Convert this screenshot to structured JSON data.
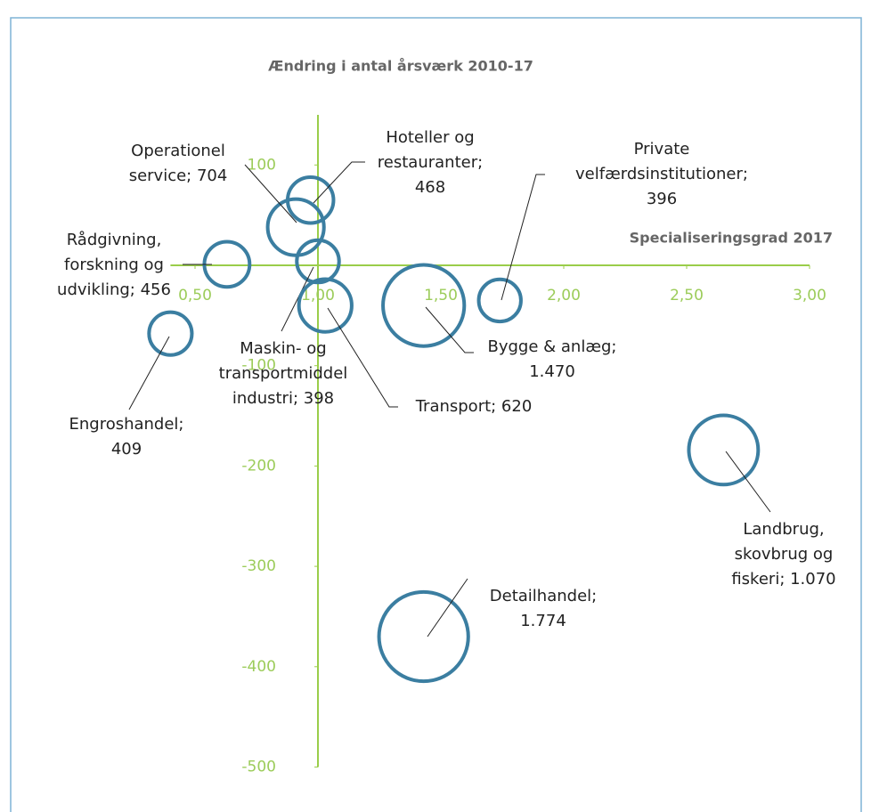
{
  "chart_data": {
    "type": "bubble",
    "y_axis_title": "Ændring i antal årsværk 2010-17",
    "x_axis_title": "Specialiseringsgrad 2017",
    "xlim": [
      0.4,
      3.0
    ],
    "xticks": [
      {
        "value": 0.5,
        "label": "0,50"
      },
      {
        "value": 1.0,
        "label": "1,00"
      },
      {
        "value": 1.5,
        "label": "1,50"
      },
      {
        "value": 2.0,
        "label": "2,00"
      },
      {
        "value": 2.5,
        "label": "2,50"
      },
      {
        "value": 3.0,
        "label": "3,00"
      }
    ],
    "ylim": [
      -500,
      150
    ],
    "yticks": [
      100,
      -100,
      -200,
      -300,
      -400,
      -500
    ],
    "color": "#3b7ea1",
    "axis_color": "#9acd4a",
    "points": [
      {
        "label_lines": [
          "Hoteller og",
          "restauranter;",
          "468"
        ],
        "x": 0.97,
        "y": 65,
        "size": 468
      },
      {
        "label_lines": [
          "Operationel",
          "service;  704"
        ],
        "x": 0.91,
        "y": 38,
        "size": 704
      },
      {
        "label_lines": [
          "Rådgivning,",
          "forskning og",
          "udvikling;  456"
        ],
        "x": 0.63,
        "y": 1,
        "size": 456
      },
      {
        "label_lines": [
          "Maskin- og",
          "transportmiddel",
          "industri;  398"
        ],
        "x": 1.0,
        "y": 4,
        "size": 398
      },
      {
        "label_lines": [
          "Transport;  620"
        ],
        "x": 1.03,
        "y": -40,
        "size": 620
      },
      {
        "label_lines": [
          "Engroshandel;",
          "409"
        ],
        "x": 0.4,
        "y": -68,
        "size": 409
      },
      {
        "label_lines": [
          "Bygge & anlæg;",
          "1.470"
        ],
        "x": 1.43,
        "y": -40,
        "size": 1470
      },
      {
        "label_lines": [
          "Private",
          "velfærdsinstitutioner;",
          "396"
        ],
        "x": 1.74,
        "y": -35,
        "size": 396
      },
      {
        "label_lines": [
          "Landbrug,",
          "skovbrug og",
          "fiskeri;  1.070"
        ],
        "x": 2.65,
        "y": -184,
        "size": 1070
      },
      {
        "label_lines": [
          "Detailhandel;",
          "1.774"
        ],
        "x": 1.43,
        "y": -370,
        "size": 1774
      }
    ]
  }
}
